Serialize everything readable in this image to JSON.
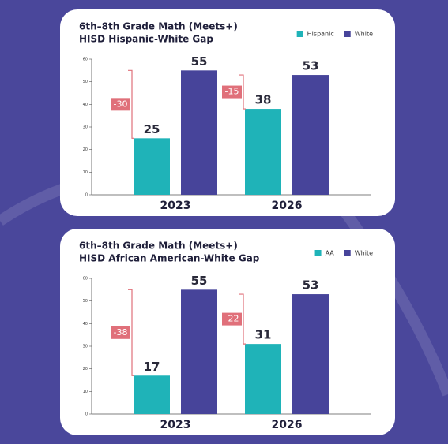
{
  "chart_data": [
    {
      "type": "bar",
      "title": "6th–8th Grade Math (Meets+)",
      "subtitle": "HISD Hispanic-White Gap",
      "categories": [
        "2023",
        "2026"
      ],
      "series": [
        {
          "name": "Hispanic",
          "color": "#1fb3b8",
          "values": [
            25,
            38
          ]
        },
        {
          "name": "White",
          "color": "#47449a",
          "values": [
            55,
            53
          ]
        }
      ],
      "gaps": [
        -30,
        -15
      ],
      "gap_color": "#e0707a",
      "ylim": [
        0,
        60
      ],
      "yticks": [
        0,
        10,
        20,
        30,
        40,
        50,
        60
      ]
    },
    {
      "type": "bar",
      "title": "6th–8th Grade Math (Meets+)",
      "subtitle": "HISD African American-White Gap",
      "categories": [
        "2023",
        "2026"
      ],
      "series": [
        {
          "name": "AA",
          "color": "#1fb3b8",
          "values": [
            17,
            31
          ]
        },
        {
          "name": "White",
          "color": "#47449a",
          "values": [
            55,
            53
          ]
        }
      ],
      "gaps": [
        -38,
        -22
      ],
      "gap_color": "#e0707a",
      "ylim": [
        0,
        60
      ],
      "yticks": [
        0,
        10,
        20,
        30,
        40,
        50,
        60
      ]
    }
  ]
}
